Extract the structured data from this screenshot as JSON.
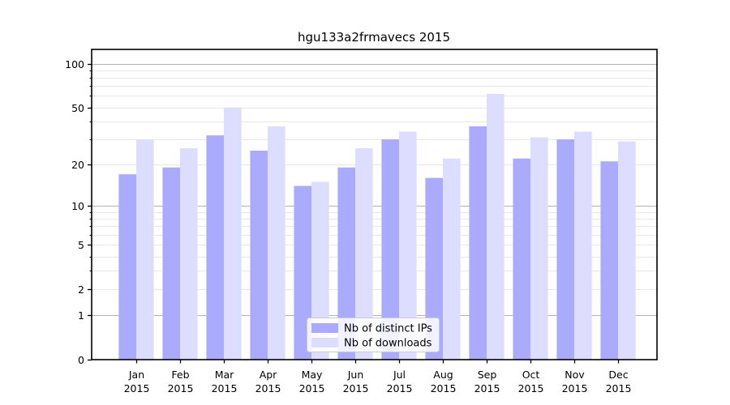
{
  "chart_data": {
    "type": "bar",
    "title": "hgu133a2frmavecs 2015",
    "categories": [
      "Jan",
      "Feb",
      "Mar",
      "Apr",
      "May",
      "Jun",
      "Jul",
      "Aug",
      "Sep",
      "Oct",
      "Nov",
      "Dec"
    ],
    "x_year_label": "2015",
    "series": [
      {
        "name": "Nb of distinct IPs",
        "color": "#aaaaff",
        "values": [
          17,
          19,
          32,
          25,
          14,
          19,
          30,
          16,
          37,
          22,
          30,
          21
        ]
      },
      {
        "name": "Nb of downloads",
        "color": "#ddddff",
        "values": [
          30,
          26,
          50,
          37,
          15,
          26,
          34,
          22,
          62,
          31,
          34,
          29
        ]
      }
    ],
    "yscale": "log1p",
    "ylim": [
      0,
      125
    ],
    "y_tick_labels": [
      0,
      1,
      2,
      5,
      10,
      20,
      50,
      100
    ],
    "y_major_gridlines": [
      1,
      10,
      100
    ],
    "y_minor_gridlines": [
      2,
      3,
      4,
      5,
      6,
      7,
      8,
      9,
      20,
      30,
      40,
      50,
      60,
      70,
      80,
      90
    ],
    "grid": "on",
    "legend_position": "lower center",
    "colors": {
      "background": "#ffffff",
      "axis": "#000000",
      "grid_major": "#b2b2b2",
      "grid_minor": "#e7e7e7",
      "legend_border": "#cccccc",
      "legend_background": "rgba(255,255,255,0.85)"
    }
  }
}
